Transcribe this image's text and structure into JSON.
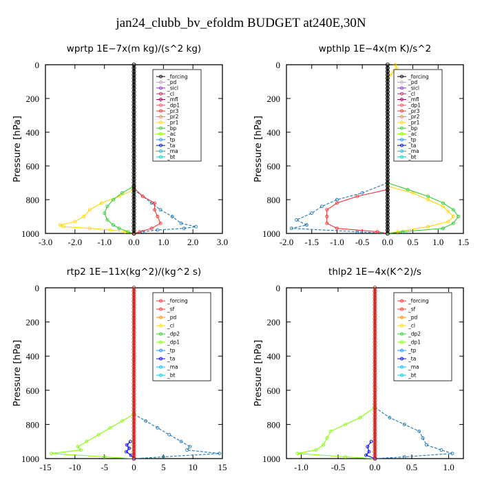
{
  "figure_title": "jan24_clubb_bv_efoldm  BUDGET at240E,30N",
  "chart_data": [
    {
      "type": "line",
      "title": "wprtp   1E−7x(m kg)/(s^2 kg)",
      "ylabel": "Pressure [hPa]",
      "xlim": [
        -3,
        3
      ],
      "ylim": [
        1000,
        0
      ],
      "xticks": [
        "-3.0",
        "-2.0",
        "-1.0",
        "0.0",
        "1.0",
        "2.0",
        "3.0"
      ],
      "xtick_values": [
        -3,
        -2,
        -1,
        0,
        1,
        2,
        3
      ],
      "yticks": [
        "0",
        "200",
        "400",
        "600",
        "800",
        "1000"
      ],
      "ytick_values": [
        0,
        200,
        400,
        600,
        800,
        1000
      ],
      "legend": [
        "_forcing",
        "_pd",
        "_sicl",
        "_cl",
        "_mfl",
        "_dp1",
        "_pr3",
        "_pr2",
        "_pr1",
        "_bp",
        "_ac",
        "_tp",
        "_ta",
        "_ma",
        "_bt"
      ],
      "legend_colors": [
        "#000000",
        "#c8a2c8",
        "#8a2be2",
        "#b03060",
        "#a0005a",
        "#e0506a",
        "#ff3030",
        "#ff8c00",
        "#ffd700",
        "#32cd32",
        "#7fff00",
        "#1e90ff",
        "#0000ff",
        "#00bfff",
        "#00ced1"
      ],
      "series": [
        {
          "name": "_tp",
          "color": "#1f77b4",
          "pressure": [
            740,
            780,
            820,
            860,
            900,
            940,
            960,
            970,
            980,
            990,
            1000
          ],
          "values": [
            0.0,
            0.3,
            0.6,
            0.9,
            1.3,
            1.6,
            2.1,
            1.7,
            0.8,
            0.3,
            0.0
          ]
        },
        {
          "name": "_pr1",
          "color": "#ffd700",
          "pressure": [
            740,
            780,
            820,
            860,
            900,
            930,
            950,
            960,
            970,
            980,
            990,
            1000
          ],
          "values": [
            0.0,
            -0.5,
            -1.1,
            -1.5,
            -1.7,
            -2.0,
            -2.5,
            -2.4,
            -1.5,
            -0.8,
            -0.3,
            0.0
          ]
        },
        {
          "name": "_bp",
          "color": "#32cd32",
          "pressure": [
            720,
            760,
            800,
            840,
            880,
            920,
            950,
            970,
            990,
            1000
          ],
          "values": [
            0.0,
            -0.4,
            -0.7,
            -0.9,
            -1.0,
            -0.9,
            -0.7,
            -0.5,
            -0.2,
            0.0
          ]
        },
        {
          "name": "_mfl",
          "color": "#ff3030",
          "pressure": [
            730,
            780,
            820,
            860,
            900,
            940,
            970,
            990,
            1000
          ],
          "values": [
            0.0,
            0.3,
            0.7,
            0.7,
            0.8,
            0.9,
            0.6,
            0.2,
            0.0
          ]
        }
      ]
    },
    {
      "type": "line",
      "title": "wpthlp   1E−4x(m K)/s^2",
      "ylabel": "Pressure [hPa]",
      "xlim": [
        -2,
        1.5
      ],
      "ylim": [
        1000,
        0
      ],
      "xticks": [
        "-2.0",
        "-1.5",
        "-1.0",
        "-0.5",
        "0.0",
        "0.5",
        "1.0",
        "1.5"
      ],
      "xtick_values": [
        -2,
        -1.5,
        -1,
        -0.5,
        0,
        0.5,
        1,
        1.5
      ],
      "yticks": [
        "0",
        "200",
        "400",
        "600",
        "800",
        "1000"
      ],
      "ytick_values": [
        0,
        200,
        400,
        600,
        800,
        1000
      ],
      "legend": [
        "_forcing",
        "_pd",
        "_sicl",
        "_cl",
        "_mfl",
        "_dp1",
        "_pr3",
        "_pr2",
        "_pr1",
        "_bp",
        "_ac",
        "_tp",
        "_ta",
        "_ma",
        "_bt"
      ],
      "legend_colors": [
        "#000000",
        "#c8a2c8",
        "#8a2be2",
        "#b03060",
        "#a0005a",
        "#e0506a",
        "#ff3030",
        "#ff8c00",
        "#ffd700",
        "#32cd32",
        "#7fff00",
        "#1e90ff",
        "#0000ff",
        "#00bfff",
        "#00ced1"
      ],
      "series": [
        {
          "name": "_tp",
          "color": "#1f77b4",
          "pressure": [
            700,
            760,
            800,
            840,
            880,
            920,
            950,
            970,
            990,
            1000
          ],
          "values": [
            0.0,
            -0.5,
            -1.0,
            -1.3,
            -1.5,
            -1.8,
            -1.6,
            -1.9,
            -0.6,
            0.0
          ]
        },
        {
          "name": "_mfl",
          "color": "#ff3030",
          "pressure": [
            740,
            780,
            820,
            860,
            900,
            940,
            970,
            990,
            1000
          ],
          "values": [
            0.0,
            -0.6,
            -1.0,
            -1.2,
            -1.2,
            -1.2,
            -1.0,
            -0.2,
            0.0
          ]
        },
        {
          "name": "_pr1",
          "color": "#ffd700",
          "pressure": [
            720,
            760,
            800,
            840,
            870,
            900,
            930,
            960,
            990,
            1000
          ],
          "values": [
            0.0,
            0.5,
            0.8,
            1.1,
            1.2,
            1.3,
            1.2,
            0.8,
            0.2,
            0.0
          ]
        },
        {
          "name": "_bp",
          "color": "#32cd32",
          "pressure": [
            700,
            740,
            780,
            820,
            860,
            900,
            940,
            970,
            990,
            1000
          ],
          "values": [
            0.0,
            0.4,
            0.8,
            1.1,
            1.3,
            1.4,
            1.3,
            1.1,
            0.3,
            0.0
          ]
        },
        {
          "name": "_pr2",
          "color": "#ffd700",
          "pressure": [
            0,
            20,
            40,
            60,
            80
          ],
          "values": [
            0.15,
            0.18,
            0.12,
            0.06,
            0.0
          ]
        }
      ]
    },
    {
      "type": "line",
      "title": "rtp2   1E−11x(kg^2)/(kg^2 s)",
      "ylabel": "Pressure [hPa]",
      "xlim": [
        -15,
        15
      ],
      "ylim": [
        1000,
        0
      ],
      "xticks": [
        "-15",
        "-10",
        "-5",
        "0",
        "5",
        "10",
        "15"
      ],
      "xtick_values": [
        -15,
        -10,
        -5,
        0,
        5,
        10,
        15
      ],
      "yticks": [
        "0",
        "200",
        "400",
        "600",
        "800",
        "1000"
      ],
      "ytick_values": [
        0,
        200,
        400,
        600,
        800,
        1000
      ],
      "legend": [
        "_forcing",
        "_sf",
        "_pd",
        "_cl",
        "_dp2",
        "_dp1",
        "_tp",
        "_ta",
        "_ma",
        "_bt"
      ],
      "legend_colors": [
        "#ff3030",
        "#ff3030",
        "#ff8c00",
        "#ffd700",
        "#32cd32",
        "#7fff00",
        "#1e90ff",
        "#0000ff",
        "#00bfff",
        "#00ced1"
      ],
      "series": [
        {
          "name": "_tp",
          "color": "#1f77b4",
          "pressure": [
            740,
            780,
            820,
            860,
            900,
            930,
            950,
            970,
            990,
            1000
          ],
          "values": [
            0.0,
            2.0,
            4.0,
            6.0,
            8.0,
            9.5,
            9.0,
            14.5,
            5.0,
            0.0
          ]
        },
        {
          "name": "_dp1",
          "color": "#7fff00",
          "pressure": [
            740,
            780,
            820,
            860,
            900,
            930,
            950,
            970,
            990,
            1000
          ],
          "values": [
            0.0,
            -2.0,
            -4.0,
            -6.0,
            -8.0,
            -9.5,
            -9.0,
            -14.0,
            -5.0,
            0.0
          ]
        },
        {
          "name": "_ta",
          "color": "#0000ff",
          "pressure": [
            900,
            920,
            940,
            960,
            980,
            1000
          ],
          "values": [
            -0.6,
            -1.2,
            -0.8,
            -1.3,
            -0.5,
            0.0
          ]
        }
      ]
    },
    {
      "type": "line",
      "title": "thlp2   1E−4x(K^2)/s",
      "ylabel": "Pressure [hPa]",
      "xlim": [
        -1.2,
        1.2
      ],
      "ylim": [
        1000,
        0
      ],
      "xticks": [
        "-1.0",
        "-0.5",
        "0.0",
        "0.5",
        "1.0"
      ],
      "xtick_values": [
        -1,
        -0.5,
        0,
        0.5,
        1
      ],
      "yticks": [
        "0",
        "200",
        "400",
        "600",
        "800",
        "1000"
      ],
      "ytick_values": [
        0,
        200,
        400,
        600,
        800,
        1000
      ],
      "legend": [
        "_forcing",
        "_sf",
        "_pd",
        "_cl",
        "_dp2",
        "_dp1",
        "_tp",
        "_ta",
        "_ma",
        "_bt"
      ],
      "legend_colors": [
        "#ff3030",
        "#ff3030",
        "#ff8c00",
        "#ffd700",
        "#32cd32",
        "#7fff00",
        "#1e90ff",
        "#0000ff",
        "#00bfff",
        "#00ced1"
      ],
      "series": [
        {
          "name": "_tp",
          "color": "#1f77b4",
          "pressure": [
            700,
            760,
            800,
            840,
            880,
            920,
            950,
            970,
            990,
            1000
          ],
          "values": [
            0.0,
            0.2,
            0.4,
            0.6,
            0.65,
            0.7,
            0.9,
            1.05,
            0.4,
            0.0
          ]
        },
        {
          "name": "_dp1",
          "color": "#7fff00",
          "pressure": [
            700,
            760,
            800,
            840,
            880,
            920,
            950,
            970,
            990,
            1000
          ],
          "values": [
            0.0,
            -0.2,
            -0.4,
            -0.6,
            -0.65,
            -0.7,
            -0.8,
            -1.05,
            -0.4,
            0.0
          ]
        },
        {
          "name": "_ta",
          "color": "#0000ff",
          "pressure": [
            900,
            930,
            960,
            980,
            1000
          ],
          "values": [
            -0.05,
            -0.1,
            -0.08,
            -0.12,
            0.0
          ]
        }
      ]
    }
  ]
}
